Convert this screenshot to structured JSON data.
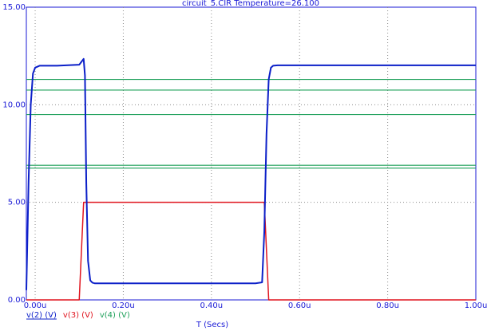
{
  "chart_data": {
    "type": "line",
    "title": "circuit_5.CIR Temperature=26.100",
    "xlabel": "T (Secs)",
    "ylabel": "",
    "xlim": [
      -0.02,
      1.0
    ],
    "ylim": [
      0.0,
      15.0
    ],
    "x_ticks": [
      0.0,
      0.2,
      0.4,
      0.6,
      0.8,
      1.0
    ],
    "x_tick_labels": [
      "0.00u",
      "0.20u",
      "0.40u",
      "0.60u",
      "0.80u",
      "1.00u"
    ],
    "y_ticks": [
      0.0,
      5.0,
      10.0,
      15.0
    ],
    "y_tick_labels": [
      "0.00",
      "5.00",
      "10.00",
      "15.00"
    ],
    "grid": true,
    "legend_position": "bottom-left",
    "colors": {
      "axis": "#1a1ad6",
      "grid": "#8c8c8c",
      "background": "#ffffff"
    },
    "series": [
      {
        "name": "v(2) (V)",
        "color": "#0b1fc8",
        "underline": true,
        "x": [
          -0.02,
          -0.015,
          -0.01,
          -0.005,
          0.0,
          0.01,
          0.05,
          0.1,
          0.105,
          0.11,
          0.113,
          0.116,
          0.12,
          0.125,
          0.13,
          0.135,
          0.14,
          0.2,
          0.3,
          0.4,
          0.5,
          0.515,
          0.52,
          0.525,
          0.53,
          0.535,
          0.54,
          0.55,
          0.6,
          0.8,
          1.0
        ],
        "y": [
          0.5,
          6.0,
          10.0,
          11.6,
          11.9,
          12.0,
          12.0,
          12.05,
          12.2,
          12.35,
          11.5,
          6.0,
          2.0,
          1.0,
          0.88,
          0.85,
          0.85,
          0.85,
          0.85,
          0.85,
          0.85,
          0.9,
          3.5,
          8.5,
          11.3,
          11.9,
          12.0,
          12.02,
          12.02,
          12.02,
          12.02
        ]
      },
      {
        "name": "v(3) (V)",
        "color": "#e0141e",
        "underline": false,
        "x": [
          -0.02,
          0.0,
          0.1,
          0.11,
          0.2,
          0.3,
          0.4,
          0.5,
          0.52,
          0.53,
          0.6,
          0.8,
          1.0
        ],
        "y": [
          0.0,
          0.0,
          0.0,
          5.0,
          5.0,
          5.0,
          5.0,
          5.0,
          5.0,
          0.0,
          0.0,
          0.0,
          0.0
        ]
      },
      {
        "name": "v(4) (V)",
        "color": "#1ea05a",
        "underline": false,
        "style": "horizontal",
        "levels": [
          11.3,
          10.75,
          9.5,
          6.9,
          6.75
        ]
      }
    ]
  }
}
